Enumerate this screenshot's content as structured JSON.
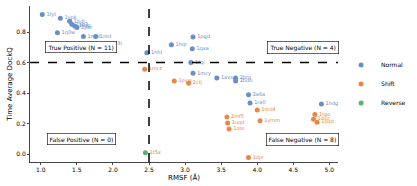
{
  "chart_data": {
    "type": "scatter",
    "x_label": "RMSF (Å)",
    "y_label": "Time Average DockQ",
    "xlim": [
      0.85,
      5.12
    ],
    "ylim": [
      -0.05,
      0.97
    ],
    "xticks": [
      {
        "value": 1,
        "label": "1.0"
      },
      {
        "value": 1.5,
        "label": "1.5"
      },
      {
        "value": 2,
        "label": "2.0"
      },
      {
        "value": 2.5,
        "label": "2.5"
      },
      {
        "value": 3,
        "label": "3.0"
      },
      {
        "value": 3.5,
        "label": "3.5"
      },
      {
        "value": 4,
        "label": "4.0"
      },
      {
        "value": 4.5,
        "label": "4.5"
      },
      {
        "value": 5,
        "label": "5.0"
      }
    ],
    "yticks": [
      {
        "value": 0,
        "label": "0.0"
      },
      0.2,
      0.4,
      0.6,
      0.8
    ],
    "grid": false,
    "legend": "right",
    "marker": "circle",
    "thresholds": {
      "x": 2.5,
      "y": 0.6
    },
    "series": [
      {
        "name": "Normal",
        "color": "#6a8fc7",
        "x": [
          1.02,
          1.27,
          1.4,
          1.43,
          1.47,
          1.5,
          1.23,
          1.59,
          1.76,
          1.92,
          2.47,
          2.81,
          3.11,
          3.1,
          3.08,
          3.11,
          3.44,
          3.7,
          3.7,
          3.88,
          3.9,
          4.89
        ],
        "y": [
          0.915,
          0.89,
          0.87,
          0.85,
          0.84,
          0.83,
          0.795,
          0.77,
          0.77,
          0.72,
          0.665,
          0.716,
          0.767,
          0.69,
          0.6,
          0.53,
          0.5,
          0.5,
          0.48,
          0.39,
          0.335,
          0.33
        ],
        "labels": [
          "1fyt",
          "1ypk",
          "1bdj",
          "1sp3",
          "1tqg",
          "2pth",
          "1q0w",
          "1mdt",
          "1ntd",
          "1k3i",
          "1hhl",
          "1hqr",
          "1pgd",
          "1qxa",
          "1fqi",
          "1mcy",
          "1avs",
          "2bro",
          "2bdb",
          "2a6a",
          "1ra0",
          "1hdg"
        ]
      },
      {
        "name": "Shift",
        "color": "#e8874a",
        "x": [
          2.44,
          2.85,
          3.05,
          4.0,
          3.58,
          3.59,
          3.61,
          4.04,
          4.8,
          4.78,
          4.83,
          3.88
        ],
        "y": [
          0.557,
          0.48,
          0.465,
          0.29,
          0.245,
          0.205,
          0.165,
          0.22,
          0.26,
          0.23,
          0.21,
          -0.02
        ],
        "labels": [
          "1mcz",
          "1pyw",
          "2cfj",
          "1md4",
          "2mf5",
          "1uqd",
          "1ote",
          "1ymm",
          "1tgo",
          "1dso",
          "1pqd",
          "1dje"
        ]
      },
      {
        "name": "Reverse",
        "color": "#5fae6e",
        "x": [
          2.45
        ],
        "y": [
          0.01
        ],
        "labels": [
          "1t5x"
        ]
      }
    ],
    "annotations": [
      {
        "text": "True Positive (N = 11)",
        "x": 1.56,
        "y": 0.7
      },
      {
        "text": "True Negative (N = 4)",
        "x": 4.63,
        "y": 0.7
      },
      {
        "text": "False Positive (N = 0)",
        "x": 1.56,
        "y": 0.1
      },
      {
        "text": "False Negative (N = 8)",
        "x": 4.63,
        "y": 0.1
      }
    ]
  }
}
